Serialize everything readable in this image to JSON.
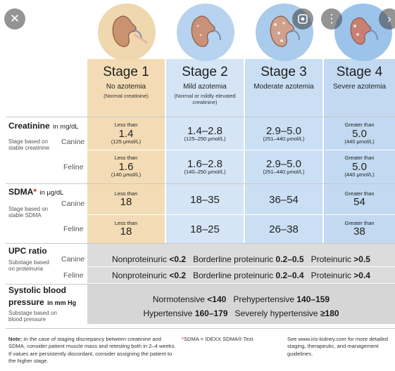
{
  "stages": [
    {
      "title": "Stage 1",
      "sub": "No azotemia",
      "small": "(Normal creatinine)"
    },
    {
      "title": "Stage 2",
      "sub": "Mild azotemia",
      "small": "(Normal or mildly elevated creatinine)"
    },
    {
      "title": "Stage 3",
      "sub": "Moderate azotemia",
      "small": ""
    },
    {
      "title": "Stage 4",
      "sub": "Severe azotemia",
      "small": ""
    }
  ],
  "creatinine": {
    "label": "Creatinine",
    "unit": "in mg/dL",
    "side_note": "Stage based on stable creatinine",
    "canine_label": "Canine",
    "feline_label": "Feline",
    "canine": [
      {
        "pre": "Less than",
        "value": "1.4",
        "unit": "(125 μmol/L)"
      },
      {
        "pre": "",
        "value": "1.4–2.8",
        "unit": "(125–250 μmol/L)"
      },
      {
        "pre": "",
        "value": "2.9–5.0",
        "unit": "(251–440 μmol/L)"
      },
      {
        "pre": "Greater than",
        "value": "5.0",
        "unit": "(440 μmol/L)"
      }
    ],
    "feline": [
      {
        "pre": "Less than",
        "value": "1.6",
        "unit": "(140 μmol/L)"
      },
      {
        "pre": "",
        "value": "1.6–2.8",
        "unit": "(140–250 μmol/L)"
      },
      {
        "pre": "",
        "value": "2.9–5.0",
        "unit": "(251–440 μmol/L)"
      },
      {
        "pre": "Greater than",
        "value": "5.0",
        "unit": "(440 μmol/L)"
      }
    ]
  },
  "sdma": {
    "label": "SDMA",
    "star": "*",
    "unit": "in μg/dL",
    "side_note": "Stage based on stable SDMA",
    "canine_label": "Canine",
    "feline_label": "Feline",
    "canine": [
      {
        "pre": "Less than",
        "value": "18"
      },
      {
        "pre": "",
        "value": "18–35"
      },
      {
        "pre": "",
        "value": "36–54"
      },
      {
        "pre": "Greater than",
        "value": "54"
      }
    ],
    "feline": [
      {
        "pre": "Less than",
        "value": "18"
      },
      {
        "pre": "",
        "value": "18–25"
      },
      {
        "pre": "",
        "value": "26–38"
      },
      {
        "pre": "Greater than",
        "value": "38"
      }
    ]
  },
  "upc": {
    "label": "UPC ratio",
    "side_note": "Substage based on proteinuria",
    "canine_label": "Canine",
    "feline_label": "Feline",
    "canine": {
      "n_label": "Nonproteinuric",
      "n_val": "<0.2",
      "b_label": "Borderline proteinuric",
      "b_val": "0.2–0.5",
      "p_label": "Proteinuric",
      "p_val": ">0.5"
    },
    "feline": {
      "n_label": "Nonproteinuric",
      "n_val": "<0.2",
      "b_label": "Borderline proteinuric",
      "b_val": "0.2–0.4",
      "p_label": "Proteinuric",
      "p_val": ">0.4"
    }
  },
  "bp": {
    "label1": "Systolic blood",
    "label2": "pressure",
    "unit": "in mm Hg",
    "side_note": "Substage based on blood pressure",
    "row1": {
      "a_label": "Normotensive",
      "a_val": "<140",
      "b_label": "Prehypertensive",
      "b_val": "140–159"
    },
    "row2": {
      "a_label": "Hypertensive",
      "a_val": "160–179",
      "b_label": "Severely hypertensive",
      "b_val": "≥180"
    }
  },
  "footer": {
    "note_bold": "Note:",
    "note_text": "In the case of staging discrepancy between creatinine and SDMA, consider patient muscle mass and retesting both in 2–4 weeks. If values are persistently discordant, consider assigning the patient to the higher stage.",
    "sdma_star": "*",
    "sdma_text": "SDMA = IDEXX SDMA® Test",
    "iris_text": "See www.iris-kidney.com for more detailed staging, therapeutic, and management guidelines."
  },
  "colors": {
    "stage1": "#f3dcb5",
    "stage2": "#d5e5f6",
    "stage3": "#cadff4",
    "stage4": "#c2d9f1",
    "star": "#d9231d"
  },
  "controls": {
    "close": "✕",
    "lens": "lens-icon",
    "more": "⋮",
    "next": "›"
  }
}
